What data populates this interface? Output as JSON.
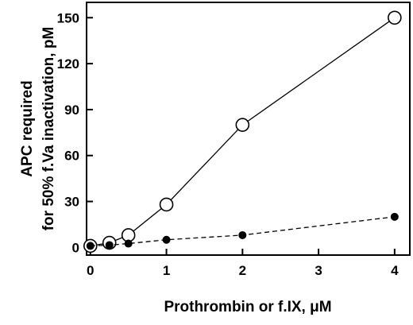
{
  "chart_data": {
    "type": "line",
    "xlabel": "Prothrombin or f.IX, μM",
    "ylabel_lines": [
      "APC required",
      "for 50% f.Va inactivation, pM"
    ],
    "x_ticks": [
      {
        "label": "0",
        "value": 0
      },
      {
        "label": "1",
        "value": 1
      },
      {
        "label": "2",
        "value": 2
      },
      {
        "label": "3",
        "value": 3
      },
      {
        "label": "4",
        "value": 4
      }
    ],
    "y_ticks": [
      {
        "label": "0",
        "value": 0
      },
      {
        "label": "30",
        "value": 30
      },
      {
        "label": "60",
        "value": 60
      },
      {
        "label": "90",
        "value": 90
      },
      {
        "label": "120",
        "value": 120
      },
      {
        "label": "150",
        "value": 150
      }
    ],
    "xlim": [
      -0.05,
      4.2
    ],
    "ylim": [
      -5,
      160
    ],
    "grid": false,
    "series": [
      {
        "marker": "open-circle",
        "line_style": "solid",
        "color": "#000000",
        "points": [
          {
            "x": 0,
            "y": 1
          },
          {
            "x": 0.25,
            "y": 3
          },
          {
            "x": 0.5,
            "y": 8
          },
          {
            "x": 1,
            "y": 28
          },
          {
            "x": 2,
            "y": 80
          },
          {
            "x": 4,
            "y": 150
          }
        ]
      },
      {
        "marker": "filled-circle",
        "line_style": "dashed",
        "color": "#000000",
        "points": [
          {
            "x": 0,
            "y": 1
          },
          {
            "x": 0.25,
            "y": 1.5
          },
          {
            "x": 0.5,
            "y": 2.5
          },
          {
            "x": 1,
            "y": 5
          },
          {
            "x": 2,
            "y": 8
          },
          {
            "x": 4,
            "y": 20
          }
        ]
      }
    ]
  }
}
